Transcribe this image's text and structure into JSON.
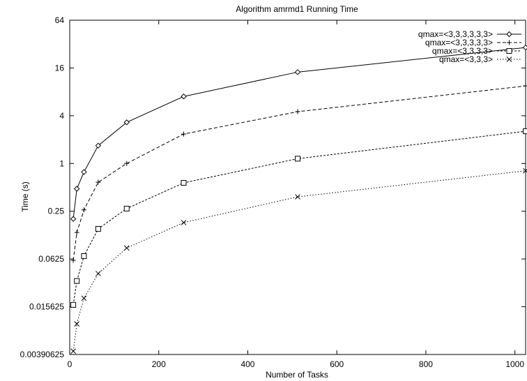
{
  "chart_data": {
    "type": "line",
    "title": "Algorithm amrmd1 Running Time",
    "xlabel": "Number of Tasks",
    "ylabel": "Time (s)",
    "xlim": [
      0,
      1024
    ],
    "ylim": [
      0.00390625,
      64
    ],
    "y_scale": "log2",
    "x_ticks": [
      0,
      200,
      400,
      600,
      800,
      1000
    ],
    "y_ticks": [
      0.00390625,
      0.015625,
      0.0625,
      0.25,
      1,
      4,
      16,
      64
    ],
    "y_tick_labels": [
      "0.00390625",
      "0.015625",
      "0.0625",
      "0.25",
      "1",
      "4",
      "16",
      "64"
    ],
    "x": [
      8,
      16,
      32,
      64,
      128,
      256,
      512,
      1024
    ],
    "grid": false,
    "legend_position": "top-right",
    "series": [
      {
        "name": "qmax=<3,3,3,3,3,3>",
        "marker": "diamond",
        "dash": "solid",
        "values": [
          0.2,
          0.48,
          0.78,
          1.68,
          3.3,
          7.0,
          14.2,
          29.0
        ]
      },
      {
        "name": "qmax=<3,3,3,3,3>",
        "marker": "plus",
        "dash": "dashed",
        "values": [
          0.06,
          0.135,
          0.26,
          0.58,
          1.0,
          2.35,
          4.5,
          9.5
        ]
      },
      {
        "name": "qmax=<3,3,3,3>",
        "marker": "square",
        "dash": "dotted-dense",
        "values": [
          0.0165,
          0.033,
          0.068,
          0.15,
          0.27,
          0.57,
          1.15,
          2.55
        ]
      },
      {
        "name": "qmax=<3,3,3>",
        "marker": "cross",
        "dash": "dotted",
        "values": [
          0.0043,
          0.0095,
          0.02,
          0.041,
          0.086,
          0.18,
          0.38,
          0.81
        ]
      }
    ]
  }
}
